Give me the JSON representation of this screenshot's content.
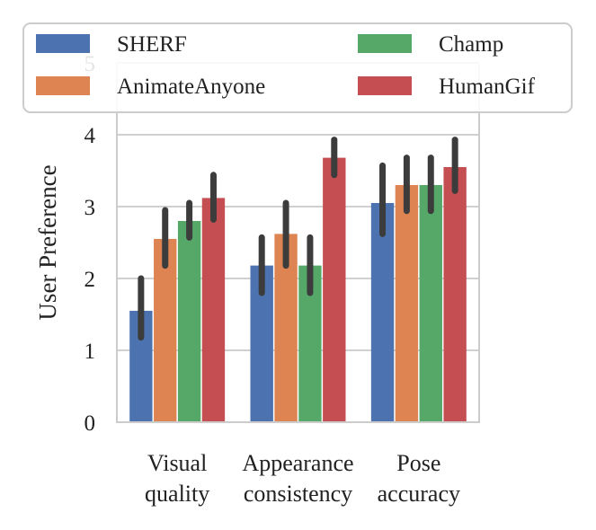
{
  "chart_data": {
    "type": "bar",
    "title": "",
    "xlabel": "",
    "ylabel": "User Preference",
    "ylim": [
      0,
      5
    ],
    "yticks": [
      "0",
      "1",
      "2",
      "3",
      "4",
      "5"
    ],
    "grid": true,
    "legend_position": "top",
    "categories": [
      [
        "Visual",
        "quality"
      ],
      [
        "Appearance",
        "consistency"
      ],
      [
        "Pose",
        "accuracy"
      ]
    ],
    "series": [
      {
        "name": "SHERF",
        "color": "#4C72B0",
        "values": [
          1.55,
          2.18,
          3.05
        ],
        "err_low": [
          1.18,
          1.8,
          2.62
        ],
        "err_high": [
          2.0,
          2.57,
          3.57
        ]
      },
      {
        "name": "AnimateAnyone",
        "color": "#DD8452",
        "values": [
          2.55,
          2.62,
          3.3
        ],
        "err_low": [
          2.18,
          2.18,
          2.94
        ],
        "err_high": [
          2.95,
          3.05,
          3.68
        ]
      },
      {
        "name": "Champ",
        "color": "#55A868",
        "values": [
          2.8,
          2.18,
          3.3
        ],
        "err_low": [
          2.57,
          1.8,
          2.94
        ],
        "err_high": [
          3.05,
          2.57,
          3.68
        ]
      },
      {
        "name": "HumanGif",
        "color": "#C44E52",
        "values": [
          3.12,
          3.68,
          3.55
        ],
        "err_low": [
          2.82,
          3.44,
          3.22
        ],
        "err_high": [
          3.44,
          3.93,
          3.93
        ]
      }
    ]
  }
}
